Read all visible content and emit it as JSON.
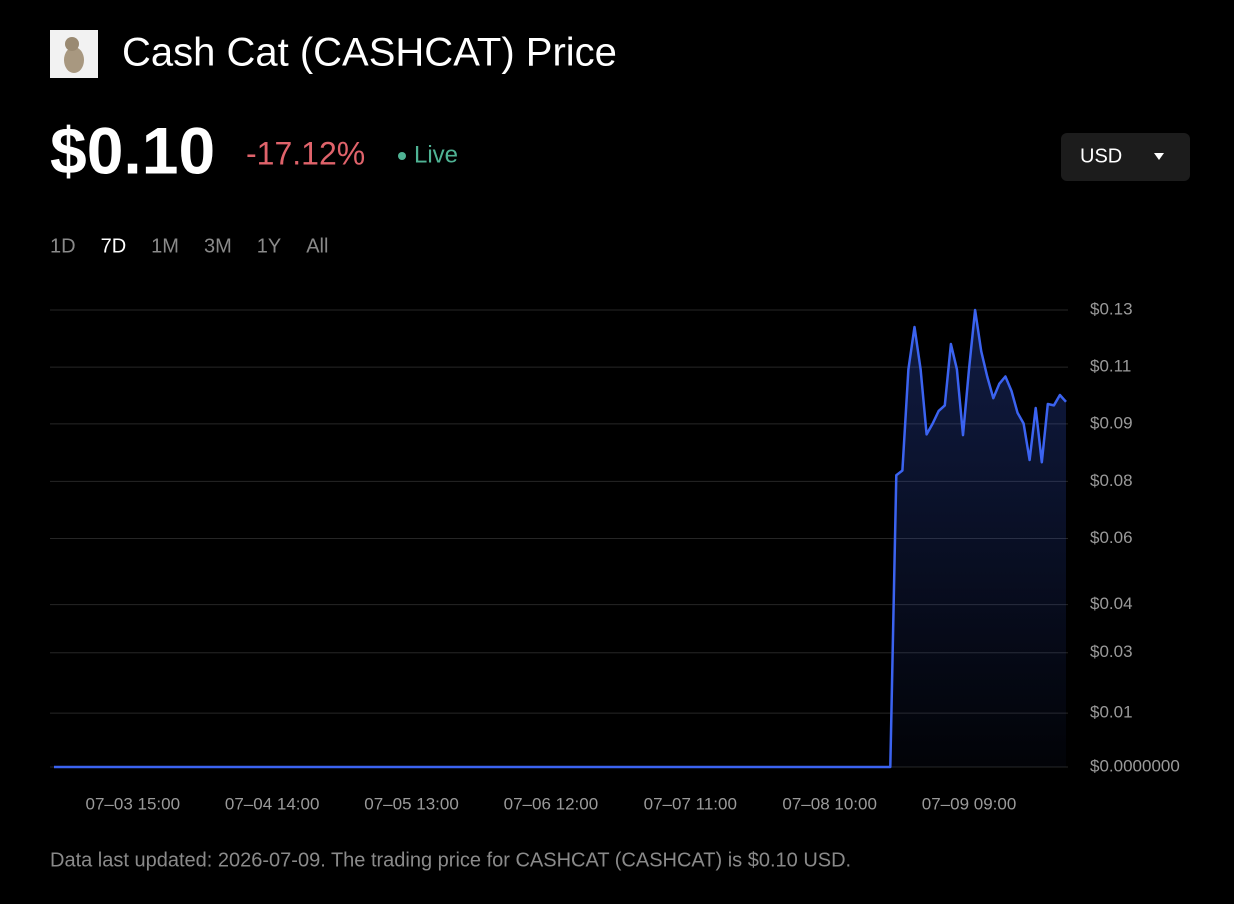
{
  "header": {
    "title": "Cash Cat (CASHCAT) Price",
    "price": "$0.10",
    "change": "-17.12%",
    "status": "Live",
    "currency": "USD"
  },
  "ranges": {
    "options": [
      "1D",
      "7D",
      "1M",
      "3M",
      "1Y",
      "All"
    ],
    "selected": 1
  },
  "chart_data": {
    "type": "area",
    "color": "#3b63f0",
    "grid": true,
    "x": [
      "07–03 02:00",
      "07–05 12:00",
      "07–08 20:00",
      "07–08 21:00",
      "07–08 22:00",
      "07–08 23:00",
      "07–09 00:00",
      "07–09 01:00",
      "07–09 02:00",
      "07–09 03:00",
      "07–09 04:00",
      "07–09 05:00",
      "07–09 06:00",
      "07–09 07:00",
      "07–09 08:00",
      "07–09 09:00",
      "07–09 10:00",
      "07–09 11:00",
      "07–09 12:00",
      "07–09 13:00",
      "07–09 14:00",
      "07–09 15:00",
      "07–09 16:00",
      "07–09 17:00",
      "07–09 18:00",
      "07–09 19:00",
      "07–09 20:00",
      "07–09 21:00",
      "07–09 22:00",
      "07–09 23:00",
      "07–10 00:00",
      "07–10 01:00"
    ],
    "values": [
      0,
      0,
      0,
      0.0807,
      0.082,
      0.11,
      0.1217,
      0.11,
      0.092,
      0.095,
      0.0985,
      0.1,
      0.117,
      0.11,
      0.0918,
      0.11,
      0.1264,
      0.115,
      0.108,
      0.102,
      0.106,
      0.108,
      0.104,
      0.098,
      0.095,
      0.0849,
      0.0993,
      0.0843,
      0.1004,
      0.1,
      0.1029,
      0.101
    ],
    "xlim": [
      "07–03 02:00",
      "07–10 01:00"
    ],
    "xticks": [
      "07–03 15:00",
      "07–04 14:00",
      "07–05 13:00",
      "07–06 12:00",
      "07–07 11:00",
      "07–08 10:00",
      "07–09 09:00"
    ],
    "ylim": [
      0,
      0.1264
    ],
    "yticks": [
      {
        "value": 0,
        "label": "$0.0000000"
      },
      {
        "value": 0.0149,
        "label": "$0.01"
      },
      {
        "value": 0.0316,
        "label": "$0.03"
      },
      {
        "value": 0.0449,
        "label": "$0.04"
      },
      {
        "value": 0.0632,
        "label": "$0.06"
      },
      {
        "value": 0.079,
        "label": "$0.08"
      },
      {
        "value": 0.0949,
        "label": "$0.09"
      },
      {
        "value": 0.1106,
        "label": "$0.11"
      },
      {
        "value": 0.1264,
        "label": "$0.13"
      }
    ]
  },
  "footer": "Data last updated: 2026-07-09. The trading price for CASHCAT (CASHCAT) is $0.10 USD."
}
